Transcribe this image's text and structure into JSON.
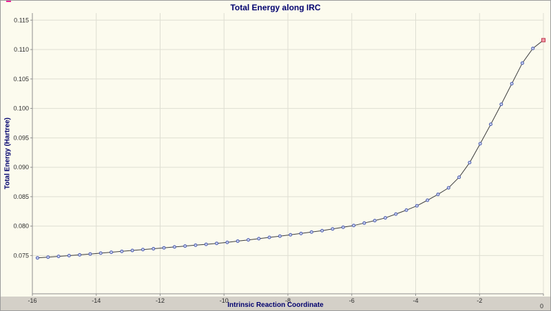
{
  "window": {
    "background_color": "#fcfbee",
    "bottom_bar_color": "#d4d0c8",
    "artifact_color": "#ee2299"
  },
  "chart_data": {
    "type": "line",
    "title": "Total Energy along IRC",
    "xlabel": "Intrinsic Reaction Coordinate",
    "ylabel": "Total Energy (Hartree)",
    "xlim": [
      -16,
      0
    ],
    "ylim": [
      0.0685,
      0.1162
    ],
    "x_ticks": [
      -16,
      -14,
      -12,
      -10,
      -8,
      -6,
      -4,
      -2,
      0
    ],
    "y_ticks": [
      0.075,
      0.08,
      0.085,
      0.09,
      0.095,
      0.1,
      0.105,
      0.11,
      0.115
    ],
    "y_tick_decimals": 3,
    "grid": true,
    "legend_position": "none",
    "last_point_highlighted": true,
    "series": [
      {
        "name": "Total Energy",
        "marker": "circle",
        "points": [
          [
            -15.84,
            0.0746
          ],
          [
            -15.51,
            0.07473
          ],
          [
            -15.18,
            0.07486
          ],
          [
            -14.85,
            0.07499
          ],
          [
            -14.52,
            0.07512
          ],
          [
            -14.19,
            0.07526
          ],
          [
            -13.86,
            0.07541
          ],
          [
            -13.53,
            0.07556
          ],
          [
            -13.2,
            0.07571
          ],
          [
            -12.87,
            0.07586
          ],
          [
            -12.54,
            0.07601
          ],
          [
            -12.21,
            0.07616
          ],
          [
            -11.88,
            0.07631
          ],
          [
            -11.55,
            0.07646
          ],
          [
            -11.22,
            0.07661
          ],
          [
            -10.89,
            0.07676
          ],
          [
            -10.56,
            0.07691
          ],
          [
            -10.23,
            0.07707
          ],
          [
            -9.9,
            0.07724
          ],
          [
            -9.57,
            0.07745
          ],
          [
            -9.24,
            0.07766
          ],
          [
            -8.91,
            0.07787
          ],
          [
            -8.58,
            0.07809
          ],
          [
            -8.25,
            0.0783
          ],
          [
            -7.92,
            0.07852
          ],
          [
            -7.59,
            0.07875
          ],
          [
            -7.26,
            0.07899
          ],
          [
            -6.93,
            0.07923
          ],
          [
            -6.6,
            0.07952
          ],
          [
            -6.27,
            0.07981
          ],
          [
            -5.94,
            0.0801
          ],
          [
            -5.61,
            0.08052
          ],
          [
            -5.28,
            0.08094
          ],
          [
            -4.95,
            0.0814
          ],
          [
            -4.62,
            0.08205
          ],
          [
            -4.29,
            0.08272
          ],
          [
            -3.96,
            0.08345
          ],
          [
            -3.63,
            0.0844
          ],
          [
            -3.3,
            0.0854
          ],
          [
            -2.97,
            0.0865
          ],
          [
            -2.64,
            0.0883
          ],
          [
            -2.31,
            0.0908
          ],
          [
            -1.98,
            0.094
          ],
          [
            -1.65,
            0.0973
          ],
          [
            -1.32,
            0.1007
          ],
          [
            -0.99,
            0.1042
          ],
          [
            -0.66,
            0.1077
          ],
          [
            -0.33,
            0.1102
          ],
          [
            0,
            0.1116
          ]
        ]
      }
    ],
    "colors": {
      "background": "#fcfbee",
      "bottom_bar": "#d4d0c8",
      "grid": "#deded2",
      "axis": "#8e8e8e",
      "line": "#3c3c3c",
      "marker_fill": "#c9d2ef",
      "marker_stroke": "#4a5ab0",
      "last_marker_fill": "#ef9aa6",
      "last_marker_stroke": "#c03a50",
      "title_color": "#00006e",
      "tick_color": "#2e2e2e"
    }
  }
}
